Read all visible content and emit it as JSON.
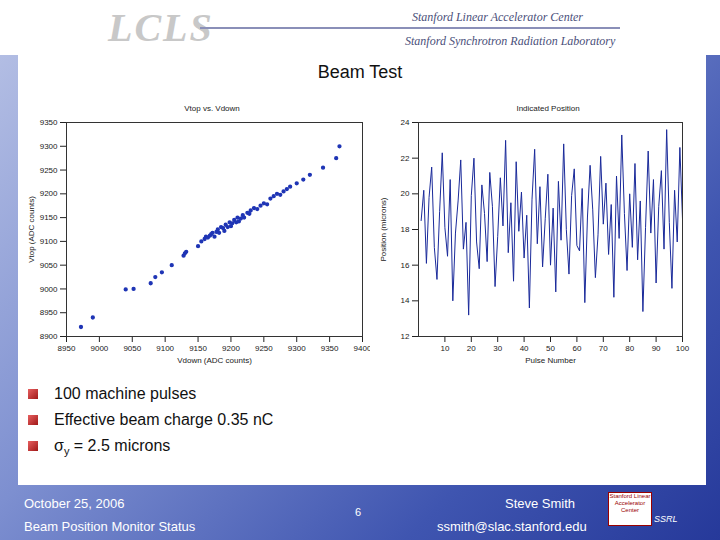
{
  "slide": {
    "header": {
      "logo": "LCLS",
      "lab1": "Stanford Linear Accelerator Center",
      "lab2": "Stanford Synchrotron Radiation Laboratory"
    },
    "title": "Beam Test",
    "bullets": [
      "100 machine pulses",
      "Effective beam charge 0.35 nC",
      {
        "symbol": "σ",
        "subscript": "y",
        "text": " = 2.5 microns"
      }
    ],
    "footer": {
      "date": "October 25, 2006",
      "topic": "Beam Position Monitor Status",
      "page": "6",
      "author": "Steve Smith",
      "email": "ssmith@slac.stanford.edu",
      "logo_text": "Stanford Linear Accelerator Center",
      "logo2": "SSRL"
    }
  },
  "chart_data": [
    {
      "type": "scatter",
      "title": "Vtop vs. Vdown",
      "x_label": "Vdown (ADC counts)",
      "y_label": "Vtop (ADC counts)",
      "color": "#1f35b5",
      "marker": "dot",
      "grid": false,
      "xlim": [
        8950,
        9400
      ],
      "ylim": [
        8900,
        9350
      ],
      "xticks": [
        8950,
        9000,
        9050,
        9100,
        9150,
        9200,
        9250,
        9300,
        9350,
        9400
      ],
      "yticks": [
        8900,
        8950,
        9000,
        9050,
        9100,
        9150,
        9200,
        9250,
        9300,
        9350
      ],
      "x": [
        8972,
        8990,
        9040,
        9052,
        9078,
        9085,
        9095,
        9110,
        9128,
        9130,
        9132,
        9150,
        9155,
        9160,
        9162,
        9165,
        9168,
        9170,
        9172,
        9175,
        9178,
        9180,
        9182,
        9185,
        9188,
        9190,
        9192,
        9195,
        9198,
        9200,
        9202,
        9205,
        9208,
        9210,
        9212,
        9215,
        9218,
        9220,
        9225,
        9228,
        9230,
        9235,
        9240,
        9245,
        9250,
        9255,
        9260,
        9265,
        9270,
        9275,
        9280,
        9285,
        9290,
        9300,
        9310,
        9320,
        9340,
        9360,
        9365
      ],
      "values": [
        8920,
        8940,
        8999,
        9000,
        9012,
        9025,
        9035,
        9050,
        9070,
        9075,
        9078,
        9090,
        9100,
        9105,
        9110,
        9108,
        9112,
        9115,
        9118,
        9110,
        9120,
        9125,
        9118,
        9130,
        9128,
        9122,
        9135,
        9130,
        9140,
        9132,
        9138,
        9145,
        9140,
        9150,
        9142,
        9148,
        9155,
        9150,
        9160,
        9158,
        9165,
        9170,
        9168,
        9175,
        9180,
        9178,
        9190,
        9195,
        9200,
        9198,
        9205,
        9210,
        9215,
        9222,
        9230,
        9240,
        9255,
        9275,
        9300
      ]
    },
    {
      "type": "line",
      "title": "Indicated Position",
      "x_label": "Pulse Number",
      "y_label": "Position (microns)",
      "color": "#1a2a9a",
      "grid": false,
      "xlim": [
        0,
        100
      ],
      "ylim": [
        12,
        24
      ],
      "xticks": [
        10,
        20,
        30,
        40,
        50,
        60,
        70,
        80,
        90,
        100
      ],
      "yticks": [
        12,
        14,
        16,
        18,
        20,
        22,
        24
      ],
      "x": [
        1,
        2,
        3,
        4,
        5,
        6,
        7,
        8,
        9,
        10,
        11,
        12,
        13,
        14,
        15,
        16,
        17,
        18,
        19,
        20,
        21,
        22,
        23,
        24,
        25,
        26,
        27,
        28,
        29,
        30,
        31,
        32,
        33,
        34,
        35,
        36,
        37,
        38,
        39,
        40,
        41,
        42,
        43,
        44,
        45,
        46,
        47,
        48,
        49,
        50,
        51,
        52,
        53,
        54,
        55,
        56,
        57,
        58,
        59,
        60,
        61,
        62,
        63,
        64,
        65,
        66,
        67,
        68,
        69,
        70,
        71,
        72,
        73,
        74,
        75,
        76,
        77,
        78,
        79,
        80,
        81,
        82,
        83,
        84,
        85,
        86,
        87,
        88,
        89,
        90,
        91,
        92,
        93,
        94,
        95,
        96,
        97,
        98,
        99,
        100
      ],
      "values": [
        18.5,
        20.2,
        16.1,
        19.8,
        21.5,
        17.0,
        15.2,
        19.0,
        22.3,
        18.1,
        16.5,
        20.8,
        14.0,
        17.8,
        19.6,
        21.9,
        16.9,
        18.4,
        13.2,
        19.9,
        22.0,
        17.3,
        15.8,
        20.5,
        18.9,
        16.2,
        21.2,
        19.3,
        14.8,
        17.6,
        20.9,
        18.2,
        23.0,
        16.7,
        19.5,
        15.1,
        21.8,
        17.9,
        20.1,
        16.4,
        18.8,
        13.6,
        19.7,
        22.5,
        17.2,
        20.4,
        15.9,
        18.6,
        21.1,
        16.0,
        19.2,
        14.5,
        20.7,
        17.4,
        22.8,
        18.0,
        15.5,
        19.9,
        21.4,
        17.1,
        16.8,
        20.3,
        13.9,
        18.7,
        21.6,
        19.1,
        15.3,
        17.7,
        22.1,
        18.3,
        20.6,
        16.6,
        19.4,
        14.2,
        21.0,
        17.5,
        23.3,
        18.9,
        15.7,
        20.0,
        17.0,
        21.7,
        16.3,
        19.6,
        13.4,
        18.1,
        22.4,
        17.8,
        20.8,
        15.0,
        19.3,
        21.3,
        16.9,
        23.6,
        18.4,
        14.7,
        20.2,
        17.3,
        22.6,
        18.6
      ]
    }
  ]
}
